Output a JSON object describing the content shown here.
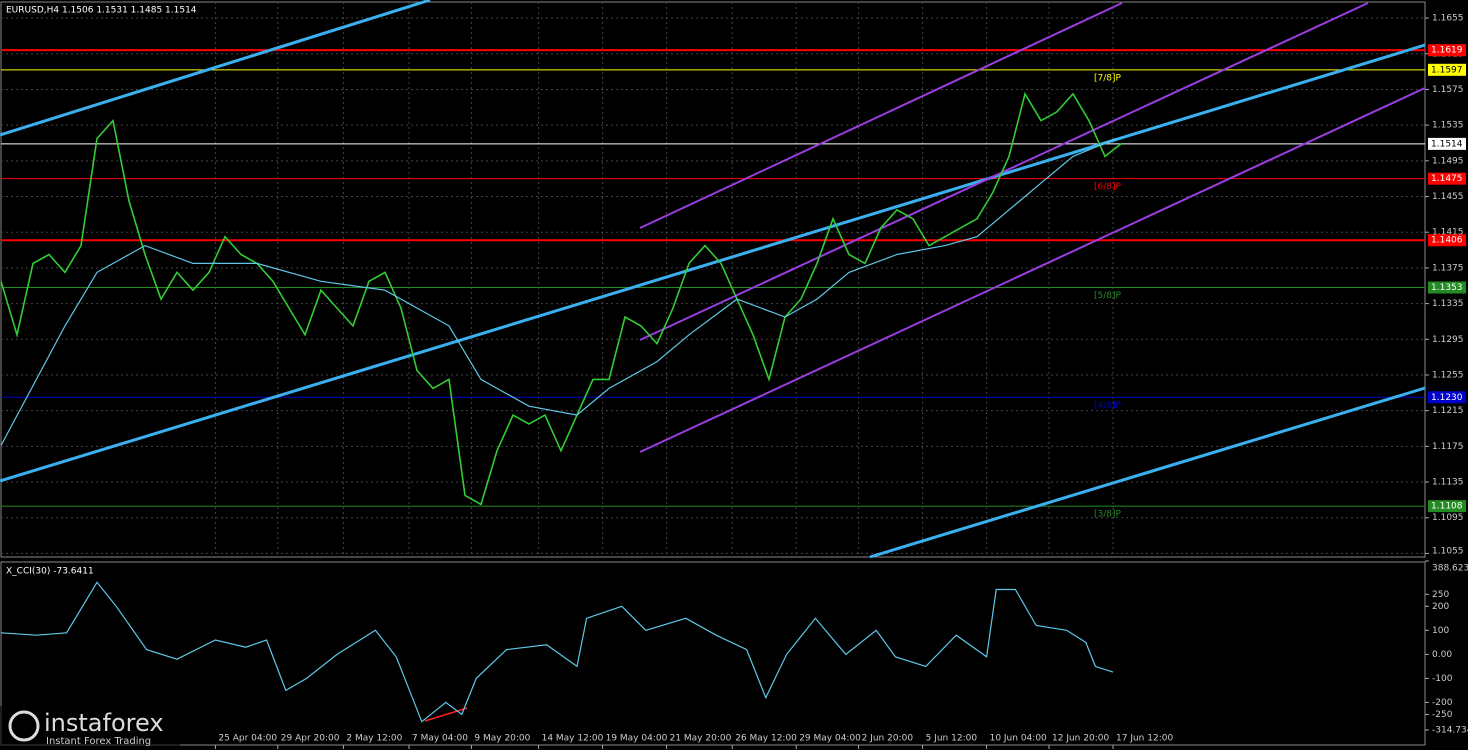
{
  "chart_data": [
    {
      "type": "line",
      "title": "EURUSD,H4 1.1506 1.1531 1.1485 1.1514",
      "xlim": [
        0,
        89
      ],
      "ylim": [
        1.1051,
        1.1673
      ],
      "yticks": [
        1.1655,
        1.1615,
        1.1575,
        1.1535,
        1.1495,
        1.1455,
        1.1415,
        1.1375,
        1.1335,
        1.1295,
        1.1255,
        1.1215,
        1.1175,
        1.1135,
        1.1095,
        1.1055
      ],
      "xticks": [
        {
          "value": 13.4,
          "label": "25 Apr 04:00"
        },
        {
          "value": 17.3,
          "label": "29 Apr 20:00"
        },
        {
          "value": 21.4,
          "label": "2 May 12:00"
        },
        {
          "value": 25.5,
          "label": "7 May 04:00"
        },
        {
          "value": 29.4,
          "label": "9 May 20:00"
        },
        {
          "value": 33.6,
          "label": "14 May 12:00"
        },
        {
          "value": 37.6,
          "label": "19 May 04:00"
        },
        {
          "value": 41.6,
          "label": "21 May 20:00"
        },
        {
          "value": 45.7,
          "label": "26 May 12:00"
        },
        {
          "value": 49.7,
          "label": "29 May 04:00"
        },
        {
          "value": 53.6,
          "label": "2 Jun 20:00"
        },
        {
          "value": 57.6,
          "label": "5 Jun 12:00"
        },
        {
          "value": 61.6,
          "label": "10 Jun 04:00"
        },
        {
          "value": 65.5,
          "label": "12 Jun 20:00"
        },
        {
          "value": 69.5,
          "label": "17 Jun 12:00"
        }
      ],
      "grid": true,
      "series": [
        {
          "name": "EURUSD",
          "color": "#32cd32",
          "x": [
            0,
            1,
            2,
            3,
            4,
            5,
            6,
            7,
            8,
            9,
            10,
            11,
            12,
            13,
            14,
            15,
            16,
            17,
            18,
            19,
            20,
            21,
            22,
            23,
            24,
            25,
            26,
            27,
            28,
            29,
            30,
            31,
            32,
            33,
            34,
            35,
            36,
            37,
            38,
            39,
            40,
            41,
            42,
            43,
            44,
            45,
            46,
            47,
            48,
            49,
            50,
            51,
            52,
            53,
            54,
            55,
            56,
            57,
            58,
            59,
            60,
            61,
            62,
            63,
            64,
            65,
            66,
            67,
            68,
            69,
            70
          ],
          "values": [
            1.136,
            1.13,
            1.138,
            1.139,
            1.137,
            1.14,
            1.152,
            1.154,
            1.145,
            1.139,
            1.134,
            1.137,
            1.135,
            1.137,
            1.141,
            1.139,
            1.138,
            1.136,
            1.133,
            1.13,
            1.135,
            1.133,
            1.131,
            1.136,
            1.137,
            1.133,
            1.126,
            1.124,
            1.125,
            1.112,
            1.111,
            1.117,
            1.121,
            1.12,
            1.121,
            1.117,
            1.121,
            1.125,
            1.125,
            1.132,
            1.131,
            1.129,
            1.133,
            1.138,
            1.14,
            1.138,
            1.134,
            1.13,
            1.125,
            1.132,
            1.134,
            1.138,
            1.143,
            1.139,
            1.138,
            1.142,
            1.144,
            1.143,
            1.14,
            1.141,
            1.142,
            1.143,
            1.146,
            1.15,
            1.157,
            1.154,
            1.155,
            1.157,
            1.154,
            1.15,
            1.1514
          ]
        },
        {
          "name": "MA",
          "color": "#5fc8e8",
          "x": [
            0,
            4,
            6,
            9,
            12,
            16,
            20,
            24,
            28,
            30,
            33,
            36,
            38,
            41,
            43,
            46,
            49,
            51,
            53,
            56,
            59,
            61,
            63,
            65,
            67,
            69.7
          ],
          "values": [
            1.1176,
            1.131,
            1.137,
            1.14,
            1.138,
            1.138,
            1.136,
            1.135,
            1.131,
            1.125,
            1.122,
            1.121,
            1.124,
            1.127,
            1.13,
            1.134,
            1.132,
            1.134,
            1.137,
            1.139,
            1.14,
            1.141,
            1.144,
            1.147,
            1.15,
            1.152
          ]
        }
      ],
      "levels": [
        {
          "value": 1.1619,
          "color": "#ff0000",
          "line_width": 2
        },
        {
          "value": 1.1597,
          "color": "#ffff00",
          "name": "[7/8]P"
        },
        {
          "value": 1.1514,
          "color": "#ffffff"
        },
        {
          "value": 1.1475,
          "color": "#ff0000",
          "name": "[6/8]P"
        },
        {
          "value": 1.1406,
          "color": "#ff0000",
          "line_width": 2
        },
        {
          "value": 1.1353,
          "color": "#228b22",
          "name": "[5/8]P"
        },
        {
          "value": 1.123,
          "value_label": "1.1230",
          "color": "#0000cd",
          "name": "[4/8]P"
        },
        {
          "value": 1.1108,
          "color": "#228b22",
          "name": "[3/8]P"
        }
      ]
    },
    {
      "type": "line",
      "title": "X_CCI(30) -73.6411",
      "xlim": [
        0,
        89
      ],
      "ylim": [
        -314.734,
        388.6237
      ],
      "yticks": [
        388.6237,
        250,
        200,
        100,
        {
          "value": 0,
          "label": "0.00"
        },
        -100,
        -200,
        -250,
        -314.734
      ],
      "series": [
        {
          "name": "X_CCI(30)",
          "color": "#5fc8e8",
          "x": [
            0,
            2.2,
            4.1,
            6,
            7.2,
            9.1,
            11,
            13.4,
            15.3,
            16.6,
            17.8,
            19.1,
            21,
            23.4,
            24.7,
            26.3,
            27.8,
            28.8,
            29.7,
            31.6,
            34.1,
            36,
            36.6,
            38.8,
            40.3,
            42.8,
            44.7,
            46.6,
            47.8,
            49.1,
            50.9,
            52.8,
            54.7,
            55.9,
            57.8,
            59.7,
            61.6,
            62.2,
            63.4,
            64.7,
            66.6,
            67.8,
            68.4,
            69.5
          ],
          "values": [
            90,
            80,
            90,
            300,
            200,
            20,
            -20,
            60,
            30,
            60,
            -150,
            -100,
            0,
            100,
            -10,
            -280,
            -200,
            -250,
            -100,
            20,
            40,
            -50,
            150,
            200,
            100,
            150,
            80,
            20,
            -180,
            0,
            150,
            0,
            100,
            -10,
            -50,
            80,
            -10,
            270,
            270,
            120,
            100,
            50,
            -50,
            -73.6411
          ]
        }
      ]
    }
  ],
  "watermark": {
    "brand": "instaforex",
    "tagline": "Instant Forex Trading"
  }
}
